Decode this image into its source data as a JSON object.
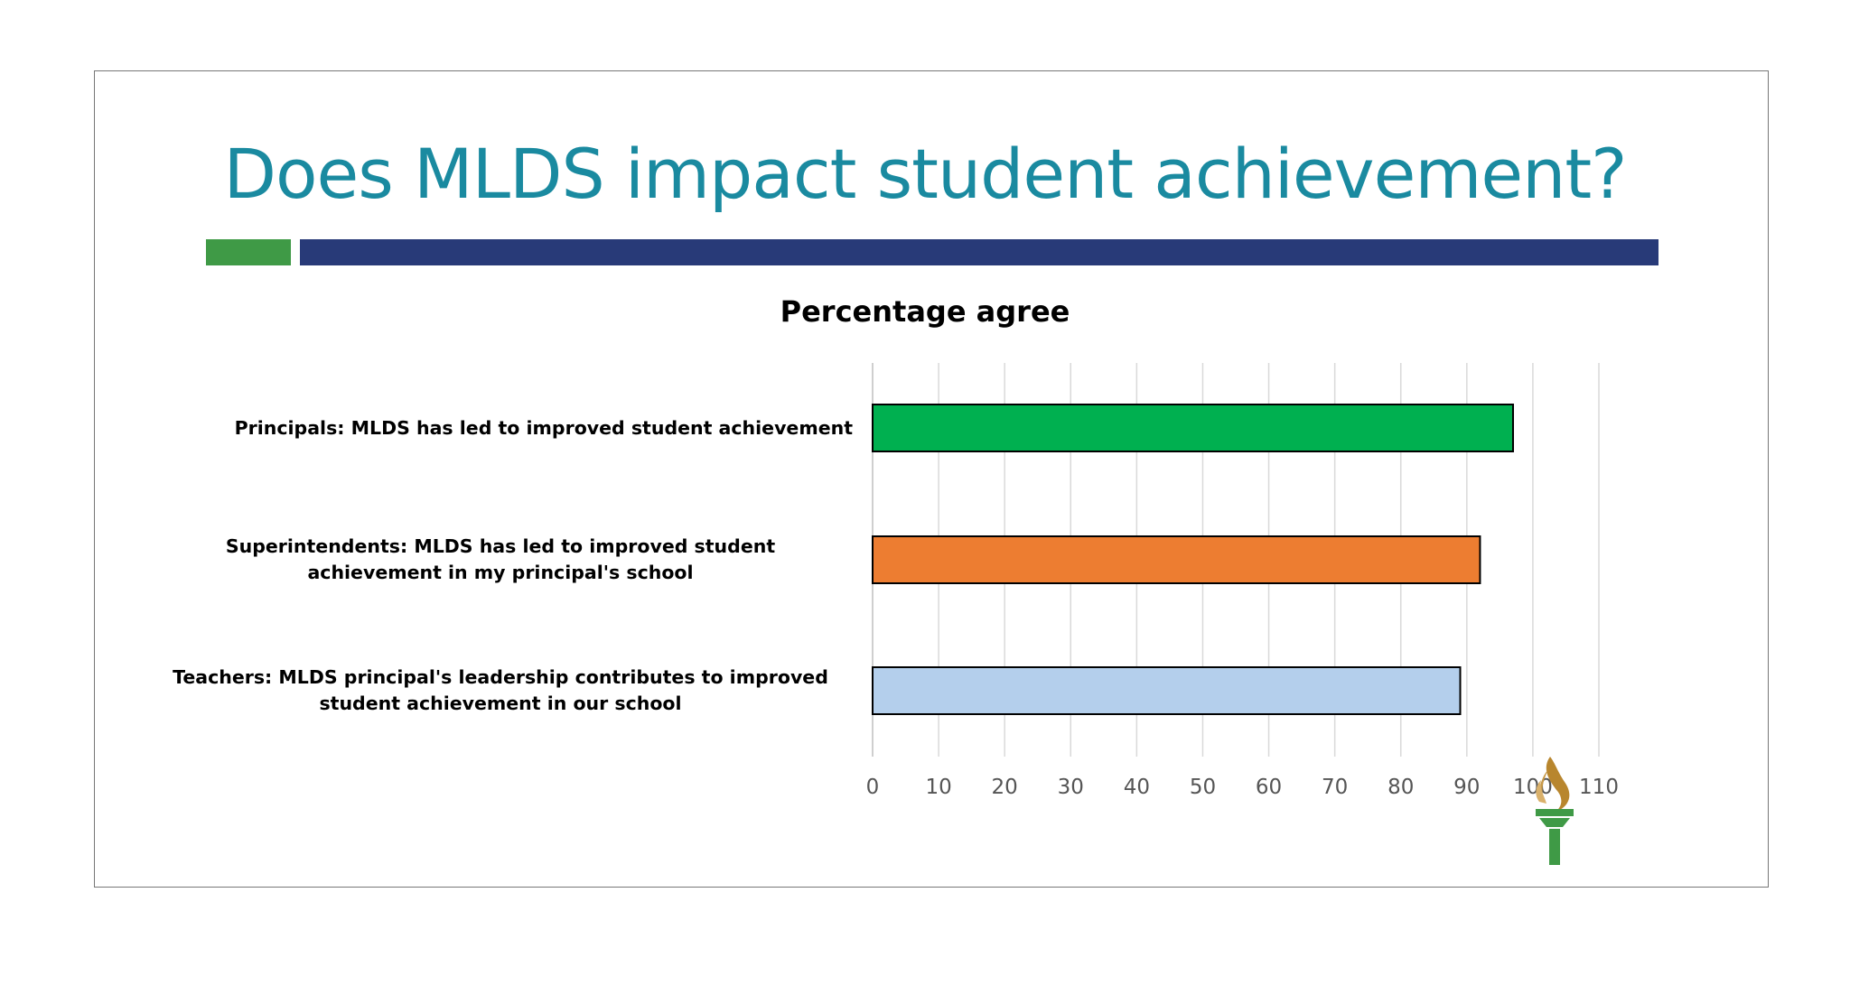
{
  "slide": {
    "title": "Does MLDS impact student achievement?",
    "accent_colors": [
      "#3f9a46",
      "#283a78"
    ],
    "logo": "torch-logo"
  },
  "chart_data": {
    "type": "bar",
    "orientation": "horizontal",
    "title": "Percentage agree",
    "categories": [
      "Principals: MLDS has led to improved student achievement",
      "Superintendents: MLDS has led to improved student achievement in my principal's school",
      "Teachers: MLDS principal's leadership contributes to improved student achievement in our school"
    ],
    "category_lines": [
      [
        "Principals: MLDS has led to improved student achievement"
      ],
      [
        "Superintendents: MLDS has led to improved student",
        "achievement in my principal's school"
      ],
      [
        "Teachers: MLDS principal's leadership contributes to improved",
        "student achievement in our school"
      ]
    ],
    "values": [
      97,
      92,
      89
    ],
    "colors": [
      "#00b050",
      "#ed7d31",
      "#b4cfec"
    ],
    "xlim": [
      0,
      110
    ],
    "xticks": [
      "0",
      "10",
      "20",
      "30",
      "40",
      "50",
      "60",
      "70",
      "80",
      "90",
      "100",
      "110"
    ],
    "grid": true,
    "legend": "none"
  }
}
